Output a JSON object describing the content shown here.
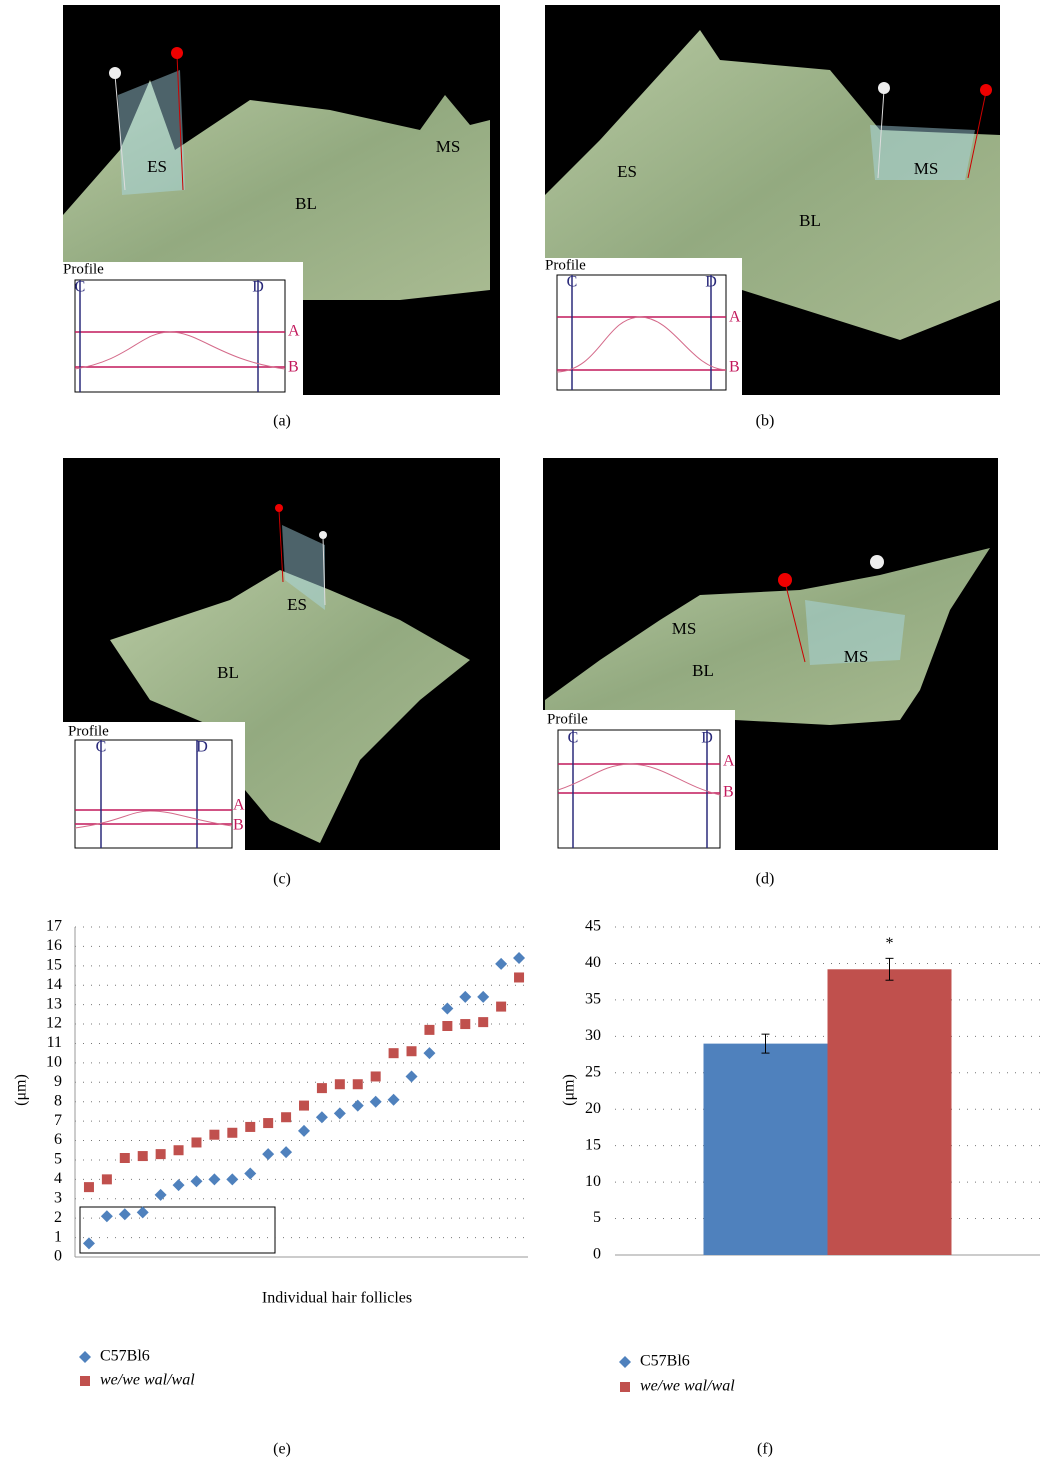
{
  "panels": [
    {
      "caption": "(a)",
      "labels": [
        "ES",
        "MS",
        "BL"
      ],
      "profile": {
        "title": "Profile",
        "markers": [
          "C",
          "D",
          "A",
          "B"
        ]
      }
    },
    {
      "caption": "(b)",
      "labels": [
        "ES",
        "MS",
        "BL"
      ],
      "profile": {
        "title": "Profile",
        "markers": [
          "C",
          "D",
          "A",
          "B"
        ]
      }
    },
    {
      "caption": "(c)",
      "labels": [
        "ES",
        "BL"
      ],
      "profile": {
        "title": "Profile",
        "markers": [
          "C",
          "D",
          "A",
          "B"
        ]
      }
    },
    {
      "caption": "(d)",
      "labels": [
        "MS",
        "MS",
        "BL"
      ],
      "profile": {
        "title": "Profile",
        "markers": [
          "C",
          "D",
          "A",
          "B"
        ]
      }
    }
  ],
  "chart_data": [
    {
      "type": "scatter",
      "caption": "(e)",
      "y_label": "(μm)",
      "x_label": "Individual hair follicles",
      "categories": [
        null,
        null,
        null,
        null,
        null,
        null,
        null,
        null,
        null,
        null,
        null,
        null,
        null,
        null,
        null,
        null,
        null,
        null,
        null,
        null,
        null,
        null,
        null,
        null,
        null
      ],
      "series": [
        {
          "name": "C57Bl6",
          "color": "#4f81bd",
          "marker": "diamond",
          "values": [
            0.7,
            2.1,
            2.2,
            2.3,
            3.2,
            3.7,
            3.9,
            4.0,
            4.0,
            4.3,
            5.3,
            5.4,
            6.5,
            7.2,
            7.4,
            7.8,
            8.0,
            8.1,
            9.3,
            10.5,
            12.8,
            13.4,
            13.4,
            15.1,
            15.4
          ]
        },
        {
          "name": "we/we wal/wal",
          "color": "#c0504d",
          "marker": "square",
          "values": [
            3.6,
            4.0,
            5.1,
            5.2,
            5.3,
            5.5,
            5.9,
            6.3,
            6.4,
            6.7,
            6.9,
            7.2,
            7.8,
            8.7,
            8.9,
            8.9,
            9.3,
            10.5,
            10.6,
            11.7,
            11.9,
            12.0,
            12.1,
            12.9,
            14.4
          ]
        }
      ],
      "ylim": [
        0,
        17
      ],
      "yticks": [
        0,
        1,
        2,
        3,
        4,
        5,
        6,
        7,
        8,
        9,
        10,
        11,
        12,
        13,
        14,
        15,
        16,
        17
      ],
      "grid": true
    },
    {
      "type": "bar",
      "caption": "(f)",
      "y_label": "(μm)",
      "annotation": "*",
      "categories": [
        null
      ],
      "series": [
        {
          "name": "C57Bl6",
          "color": "#4f81bd",
          "marker": "diamond",
          "values": [
            29.0
          ],
          "errors": [
            1.3
          ]
        },
        {
          "name": "we/we wal/wal",
          "color": "#c0504d",
          "marker": "square",
          "values": [
            39.2
          ],
          "errors": [
            1.5
          ]
        }
      ],
      "ylim": [
        0,
        45
      ],
      "yticks": [
        0,
        5,
        10,
        15,
        20,
        25,
        30,
        35,
        40,
        45
      ],
      "grid": true
    }
  ]
}
